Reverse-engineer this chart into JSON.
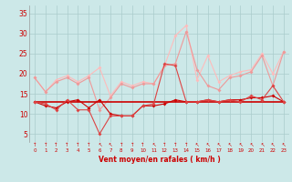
{
  "x": [
    0,
    1,
    2,
    3,
    4,
    5,
    6,
    7,
    8,
    9,
    10,
    11,
    12,
    13,
    14,
    15,
    16,
    17,
    18,
    19,
    20,
    21,
    22,
    23
  ],
  "background_color": "#cce8e8",
  "grid_color": "#aacccc",
  "xlabel": "Vent moyen/en rafales ( km/h )",
  "xlabel_color": "#cc0000",
  "tick_color": "#cc0000",
  "ylim": [
    3,
    37
  ],
  "yticks": [
    5,
    10,
    15,
    20,
    25,
    30,
    35
  ],
  "line1": [
    13.0,
    12.5,
    11.0,
    13.5,
    11.0,
    11.0,
    5.0,
    9.5,
    9.5,
    9.5,
    12.0,
    12.5,
    22.5,
    22.0,
    13.0,
    13.0,
    13.5,
    13.0,
    13.5,
    13.0,
    14.5,
    13.5,
    17.0,
    13.0
  ],
  "line2": [
    13.0,
    12.0,
    11.5,
    13.0,
    13.5,
    11.5,
    13.5,
    10.0,
    9.5,
    9.5,
    12.0,
    12.0,
    12.5,
    13.5,
    13.0,
    13.0,
    13.5,
    13.0,
    13.5,
    13.5,
    14.0,
    14.0,
    14.5,
    13.0
  ],
  "line3": [
    19.0,
    15.5,
    18.0,
    19.0,
    17.5,
    19.0,
    11.0,
    14.0,
    17.5,
    16.5,
    17.5,
    17.5,
    22.0,
    22.5,
    30.5,
    21.0,
    17.0,
    16.0,
    19.0,
    19.5,
    20.5,
    24.5,
    17.0,
    25.5
  ],
  "line4": [
    19.0,
    15.5,
    18.5,
    19.5,
    18.0,
    19.5,
    21.5,
    14.5,
    18.0,
    17.0,
    18.0,
    17.5,
    22.0,
    29.5,
    32.0,
    18.5,
    24.5,
    18.0,
    19.5,
    20.5,
    21.0,
    25.0,
    20.0,
    25.5
  ],
  "line5": [
    13.0,
    13.0,
    13.0,
    13.0,
    13.0,
    13.0,
    13.0,
    13.0,
    13.0,
    13.0,
    13.0,
    13.0,
    13.0,
    13.0,
    13.0,
    13.0,
    13.0,
    13.0,
    13.0,
    13.0,
    13.0,
    13.0,
    13.0,
    13.0
  ],
  "color_dark": "#cc0000",
  "color_medium": "#dd4444",
  "color_light": "#ee9999",
  "color_light2": "#ffbbbb",
  "arrows": [
    "↑",
    "↑",
    "↑",
    "↑",
    "↑",
    "↑",
    "↖",
    "↖",
    "↑",
    "↑",
    "↑",
    "↖",
    "↑",
    "↑",
    "↑",
    "↖",
    "↖",
    "↖",
    "↖",
    "↖",
    "↖",
    "↖",
    "↖",
    "↖"
  ]
}
